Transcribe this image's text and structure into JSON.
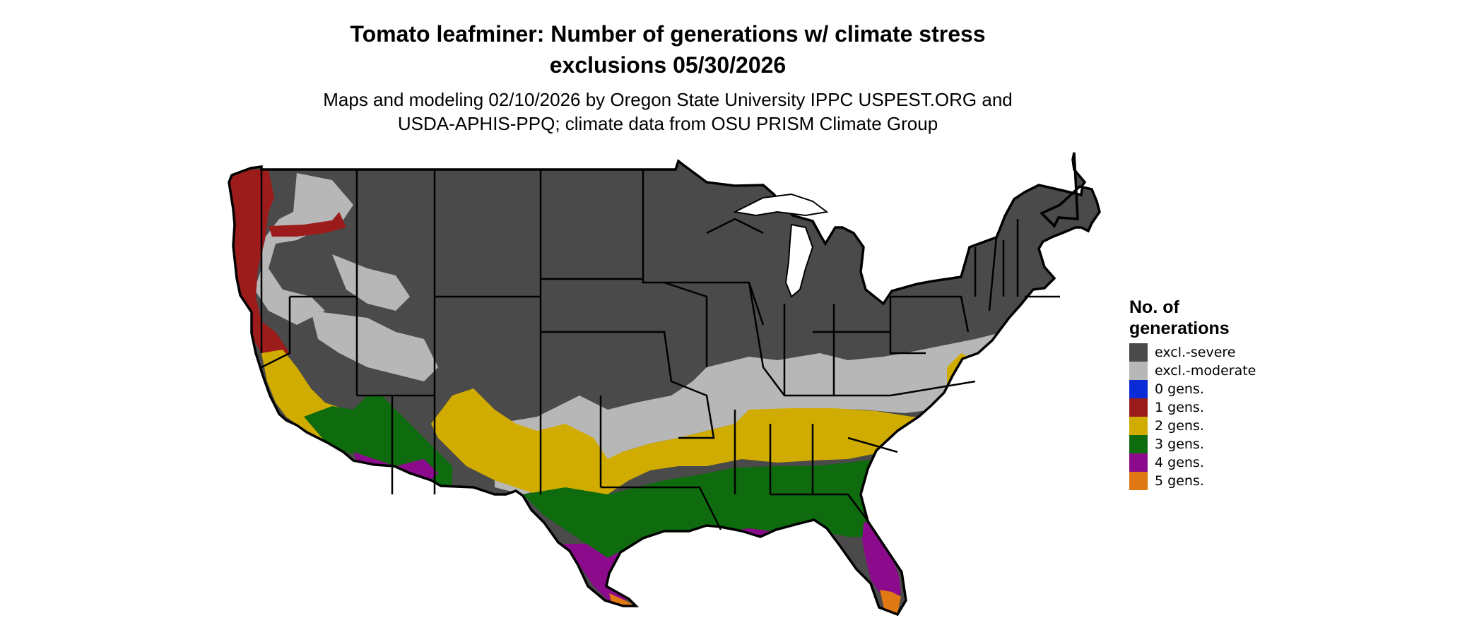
{
  "title_line1": "Tomato leafminer: Number of generations w/ climate stress",
  "title_line2": "exclusions 05/30/2026",
  "subtitle_line1": "Maps and modeling 02/10/2026 by Oregon State University IPPC USPEST.ORG and",
  "subtitle_line2": "USDA-APHIS-PPQ; climate data from OSU PRISM Climate Group",
  "legend": {
    "title": "No. of generations",
    "items": [
      {
        "label": "excl.-severe",
        "color": "#4a4a4a"
      },
      {
        "label": "excl.-moderate",
        "color": "#b7b7b7"
      },
      {
        "label": "0 gens.",
        "color": "#0a2bd6"
      },
      {
        "label": "1 gens.",
        "color": "#9c1c1c"
      },
      {
        "label": "2 gens.",
        "color": "#d1ac00"
      },
      {
        "label": "3 gens.",
        "color": "#0e6b0e"
      },
      {
        "label": "4 gens.",
        "color": "#8c0a8c"
      },
      {
        "label": "5 gens.",
        "color": "#e07814"
      }
    ]
  }
}
